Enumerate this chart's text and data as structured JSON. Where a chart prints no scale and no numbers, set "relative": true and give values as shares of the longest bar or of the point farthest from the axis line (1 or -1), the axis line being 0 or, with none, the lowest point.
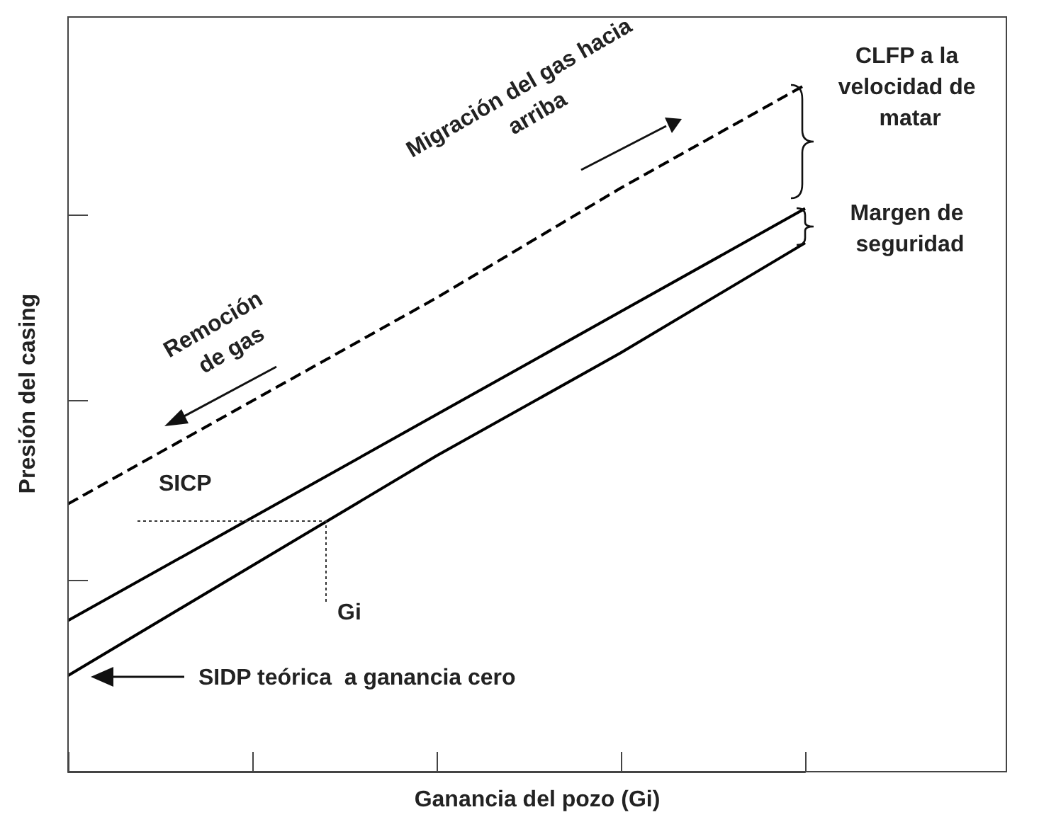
{
  "chart_data": {
    "type": "line",
    "relative": true,
    "marker": "none",
    "xlabel": "Ganancia del pozo (Gi)",
    "ylabel": "Presión del casing",
    "categories": [
      null,
      null,
      null,
      null,
      null
    ],
    "series": [
      {
        "color": "#000000",
        "line_style": "dashed",
        "values": [
          0.39,
          0.54,
          0.69,
          0.85,
          1
        ]
      },
      {
        "color": "#000000",
        "line_style": "solid",
        "values": [
          0.22,
          0.37,
          0.52,
          0.67,
          0.82
        ]
      },
      {
        "color": "#000000",
        "line_style": "solid",
        "values": [
          0.14,
          0.3,
          0.46,
          0.61,
          0.77
        ]
      }
    ],
    "annotations": [
      "Remoción de gas",
      "Migración del gas hacia arriba",
      "CLFP a la velocidad de matar",
      "Margen de seguridad",
      "SICP",
      "Gi",
      "SIDP teórica  a ganancia cero"
    ]
  }
}
